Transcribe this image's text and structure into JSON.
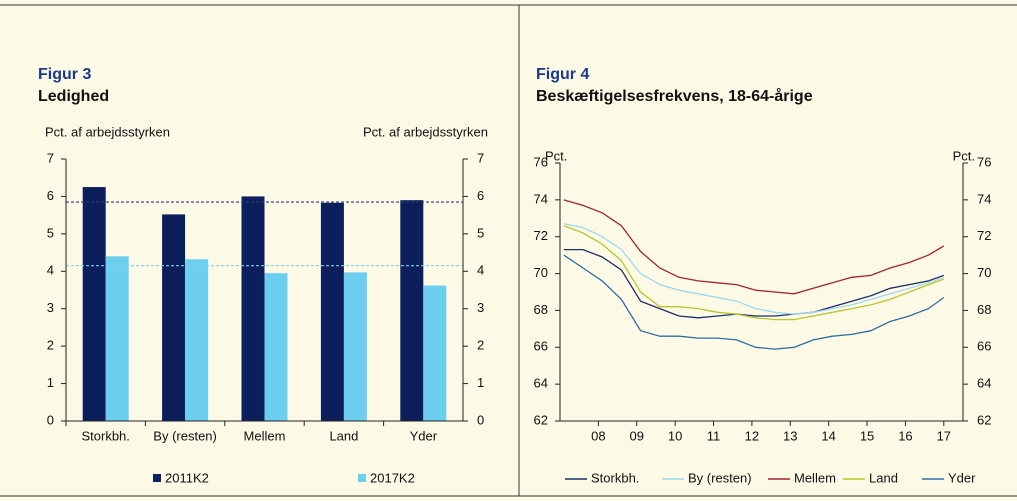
{
  "chart_data": [
    {
      "type": "bar",
      "title": "Figur 3",
      "subtitle": "Ledighed",
      "y_label": "Pct. af arbejdsstyrken",
      "y2_label": "Pct. af arbejdsstyrken",
      "categories": [
        "Storkbh.",
        "By (resten)",
        "Mellem",
        "Land",
        "Yder"
      ],
      "series": [
        {
          "name": "2011K2",
          "color": "#0c1f5c",
          "values": [
            6.25,
            5.52,
            6.0,
            5.83,
            5.9
          ]
        },
        {
          "name": "2017K2",
          "color": "#6ccff0",
          "values": [
            4.4,
            4.32,
            3.95,
            3.97,
            3.62
          ]
        }
      ],
      "reference_lines": [
        {
          "value": 5.85,
          "color": "#2b3f78"
        },
        {
          "value": 4.15,
          "color": "#7fd0e8"
        }
      ],
      "ylim": [
        0,
        7
      ],
      "yticks": [
        0,
        1,
        2,
        3,
        4,
        5,
        6,
        7
      ],
      "y2lim": [
        0,
        7
      ],
      "y2ticks": [
        0,
        1,
        2,
        3,
        4,
        5,
        6,
        7
      ]
    },
    {
      "type": "line",
      "title": "Figur 4",
      "subtitle": "Beskæftigelsesfrekvens, 18-64-årige",
      "y_label": "Pct.",
      "y2_label": "Pct.",
      "x": [
        2007.6,
        2008.1,
        2008.6,
        2009.1,
        2009.6,
        2010.1,
        2010.6,
        2011.1,
        2011.6,
        2012.1,
        2012.6,
        2013.1,
        2013.6,
        2014.1,
        2014.6,
        2015.1,
        2015.6,
        2016.1,
        2016.6,
        2017.1,
        2017.5
      ],
      "series": [
        {
          "name": "Storkbh.",
          "color": "#1c2f6b",
          "values": [
            71.3,
            71.3,
            70.9,
            70.2,
            68.5,
            68.1,
            67.7,
            67.6,
            67.7,
            67.8,
            67.7,
            67.7,
            67.8,
            67.9,
            68.2,
            68.5,
            68.8,
            69.2,
            69.4,
            69.6,
            69.9
          ]
        },
        {
          "name": "By (resten)",
          "color": "#9fd8ec",
          "values": [
            72.7,
            72.5,
            72.0,
            71.3,
            70.0,
            69.4,
            69.1,
            68.9,
            68.7,
            68.5,
            68.1,
            67.9,
            67.8,
            67.9,
            68.1,
            68.3,
            68.6,
            68.9,
            69.2,
            69.5,
            69.8
          ]
        },
        {
          "name": "Mellem",
          "color": "#a8232d",
          "values": [
            74.0,
            73.7,
            73.3,
            72.6,
            71.2,
            70.3,
            69.8,
            69.6,
            69.5,
            69.4,
            69.1,
            69.0,
            68.9,
            69.2,
            69.5,
            69.8,
            69.9,
            70.3,
            70.6,
            71.0,
            71.5
          ]
        },
        {
          "name": "Land",
          "color": "#b5c72c",
          "values": [
            72.6,
            72.2,
            71.6,
            70.7,
            69.0,
            68.2,
            68.2,
            68.1,
            67.9,
            67.8,
            67.6,
            67.5,
            67.5,
            67.7,
            67.9,
            68.1,
            68.3,
            68.6,
            69.0,
            69.4,
            69.7
          ]
        },
        {
          "name": "Yder",
          "color": "#2d6ea3",
          "values": [
            71.0,
            70.3,
            69.6,
            68.6,
            66.9,
            66.6,
            66.6,
            66.5,
            66.5,
            66.4,
            66.0,
            65.9,
            66.0,
            66.4,
            66.6,
            66.7,
            66.9,
            67.4,
            67.7,
            68.1,
            68.7
          ]
        }
      ],
      "xlim": [
        2007.5,
        2018.0
      ],
      "xticks": [
        {
          "value": 2008.5,
          "label": "08"
        },
        {
          "value": 2009.5,
          "label": "09"
        },
        {
          "value": 2010.5,
          "label": "10"
        },
        {
          "value": 2011.5,
          "label": "11"
        },
        {
          "value": 2012.5,
          "label": "12"
        },
        {
          "value": 2013.5,
          "label": "13"
        },
        {
          "value": 2014.5,
          "label": "14"
        },
        {
          "value": 2015.5,
          "label": "15"
        },
        {
          "value": 2016.5,
          "label": "16"
        },
        {
          "value": 2017.5,
          "label": "17"
        }
      ],
      "ylim": [
        62,
        76
      ],
      "yticks": [
        62,
        64,
        66,
        68,
        70,
        72,
        74,
        76
      ],
      "y2lim": [
        62,
        76
      ],
      "y2ticks": [
        62,
        64,
        66,
        68,
        70,
        72,
        74,
        76
      ]
    }
  ]
}
